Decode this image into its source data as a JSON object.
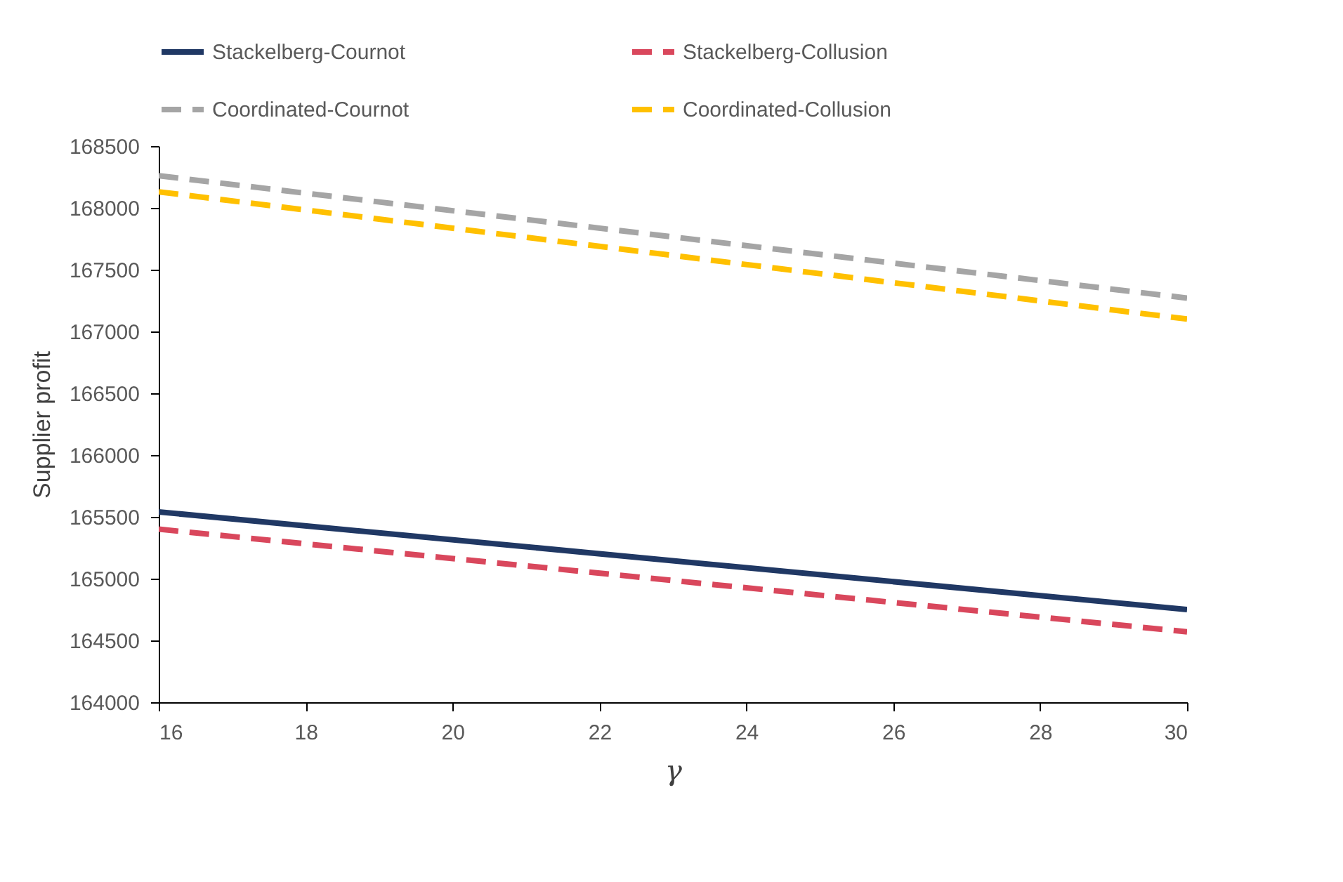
{
  "chart_data": {
    "type": "line",
    "xlabel": "γ",
    "ylabel": "Supplier profit",
    "x": [
      16,
      30
    ],
    "series": [
      {
        "name": "Stackelberg-Cournot",
        "color": "#203864",
        "line_style": "solid",
        "values": [
          165540,
          164750
        ]
      },
      {
        "name": "Stackelberg-Collusion",
        "color": "#d9475c",
        "line_style": "dashed",
        "values": [
          165400,
          164570
        ]
      },
      {
        "name": "Coordinated-Cournot",
        "color": "#a5a5a5",
        "line_style": "dashed",
        "values": [
          168260,
          167270
        ]
      },
      {
        "name": "Coordinated-Collusion",
        "color": "#ffc000",
        "line_style": "dashed",
        "values": [
          168130,
          167100
        ]
      }
    ],
    "xlim": [
      16,
      30
    ],
    "xticks": [
      16,
      18,
      20,
      22,
      24,
      26,
      28,
      30
    ],
    "ylim": [
      164000,
      168500
    ],
    "yticks": [
      164000,
      164500,
      165000,
      165500,
      166000,
      166500,
      167000,
      167500,
      168000,
      168500
    ],
    "grid": false,
    "legend": "top",
    "marker": "none"
  }
}
